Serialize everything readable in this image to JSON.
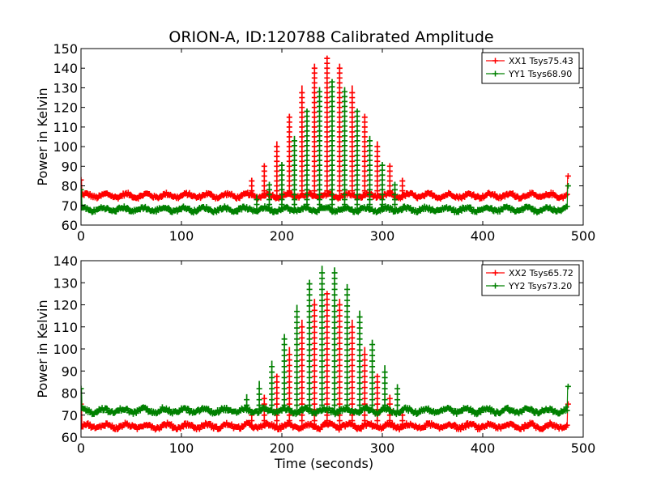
{
  "figure": {
    "title": "ORION-A, ID:120788 Calibrated Amplitude"
  },
  "chart_data": [
    {
      "type": "line",
      "title": "ORION-A, ID:120788 Calibrated Amplitude",
      "xlabel": "",
      "ylabel": "Power in Kelvin",
      "xlim": [
        0,
        500
      ],
      "ylim": [
        60,
        150
      ],
      "xticks": [
        0,
        100,
        200,
        300,
        400,
        500
      ],
      "yticks": [
        60,
        70,
        80,
        90,
        100,
        110,
        120,
        130,
        140,
        150
      ],
      "legend_position": "top-right",
      "grid": false,
      "series": [
        {
          "name": "XX1 Tsys75.43",
          "color": "#ff0000",
          "marker": "+",
          "baseline": 75,
          "peak_max": 145,
          "peak_center": 245,
          "peak_start": 170,
          "peak_end": 320,
          "x_end": 485,
          "end_value": 85,
          "start_value": 83
        },
        {
          "name": "YY1 Tsys68.90",
          "color": "#008000",
          "marker": "+",
          "baseline": 68,
          "peak_max": 133,
          "peak_center": 250,
          "peak_start": 175,
          "peak_end": 320,
          "x_end": 485,
          "end_value": 80,
          "start_value": 78
        }
      ]
    },
    {
      "type": "line",
      "title": "",
      "xlabel": "Time (seconds)",
      "ylabel": "Power in Kelvin",
      "xlim": [
        0,
        500
      ],
      "ylim": [
        60,
        140
      ],
      "xticks": [
        0,
        100,
        200,
        300,
        400,
        500
      ],
      "yticks": [
        60,
        70,
        80,
        90,
        100,
        110,
        120,
        130,
        140
      ],
      "legend_position": "top-right",
      "grid": false,
      "series": [
        {
          "name": "XX2 Tsys65.72",
          "color": "#ff0000",
          "marker": "+",
          "baseline": 65,
          "peak_max": 125,
          "peak_center": 245,
          "peak_start": 170,
          "peak_end": 320,
          "x_end": 485,
          "end_value": 75,
          "start_value": 75
        },
        {
          "name": "YY2 Tsys73.20",
          "color": "#008000",
          "marker": "+",
          "baseline": 72,
          "peak_max": 137,
          "peak_center": 245,
          "peak_start": 165,
          "peak_end": 320,
          "x_end": 485,
          "end_value": 83,
          "start_value": 82
        }
      ]
    }
  ]
}
